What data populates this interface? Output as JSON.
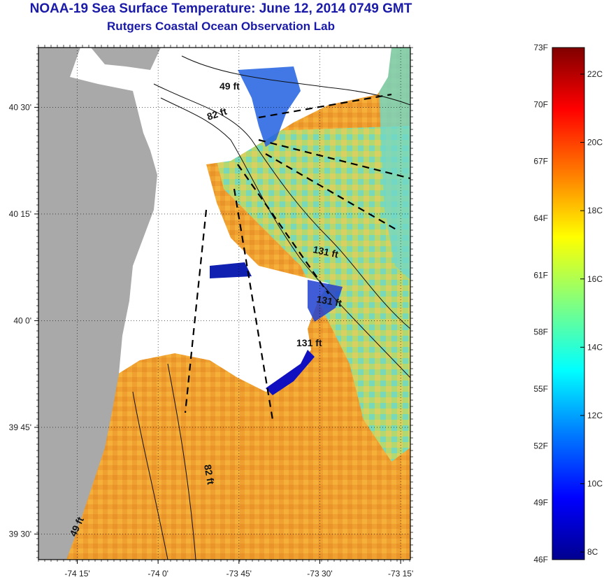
{
  "title": "NOAA-19 Sea Surface Temperature:  June 12, 2014 0749 GMT",
  "subtitle": "Rutgers Coastal Ocean Observation Lab",
  "lat_ticks": [
    {
      "label": "40 30'",
      "value": 40.5
    },
    {
      "label": "40 15'",
      "value": 40.25
    },
    {
      "label": "40 0'",
      "value": 40.0
    },
    {
      "label": "39 45'",
      "value": 39.75
    },
    {
      "label": "39 30'",
      "value": 39.5
    }
  ],
  "lon_ticks": [
    {
      "label": "-74 15'",
      "value": -74.25
    },
    {
      "label": "-74 0'",
      "value": -74.0
    },
    {
      "label": "-73 45'",
      "value": -73.75
    },
    {
      "label": "-73 30'",
      "value": -73.5
    },
    {
      "label": "-73 15'",
      "value": -73.25
    }
  ],
  "depth_labels": [
    {
      "text": "49 ft"
    },
    {
      "text": "82 ft"
    },
    {
      "text": "131 ft"
    },
    {
      "text": "131 ft"
    },
    {
      "text": "131 ft"
    },
    {
      "text": "82 ft"
    },
    {
      "text": "49 ft"
    }
  ],
  "colorbar": {
    "fahrenheit": [
      "73F",
      "70F",
      "67F",
      "64F",
      "61F",
      "58F",
      "55F",
      "52F",
      "49F",
      "46F"
    ],
    "celsius": [
      "22C",
      "20C",
      "18C",
      "16C",
      "14C",
      "12C",
      "10C",
      "8C"
    ],
    "colors": [
      "#00008f",
      "#0000ff",
      "#0080ff",
      "#00ffff",
      "#80ff80",
      "#ffff00",
      "#ff8000",
      "#ff0000",
      "#800000"
    ]
  },
  "colors": {
    "land": "#a9a9a9",
    "cloud": "#ffffff",
    "warm_water": "#f0a030",
    "title": "#1a1aa8"
  }
}
